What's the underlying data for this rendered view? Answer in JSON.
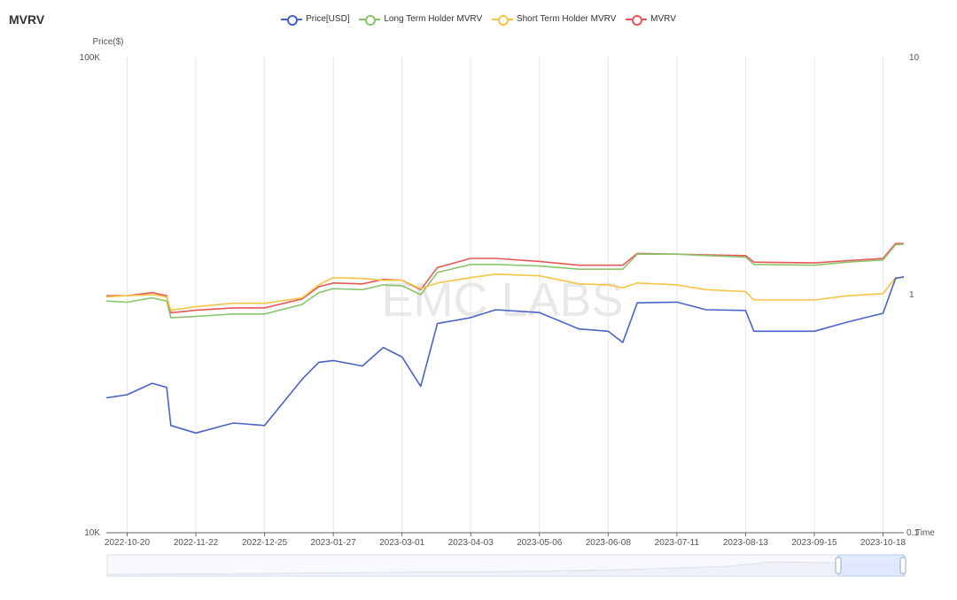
{
  "page_title": "MVRV",
  "legend": [
    {
      "label": "Price[USD]",
      "color": "#4a63c9"
    },
    {
      "label": "Long Term Holder MVRV",
      "color": "#8cc46b"
    },
    {
      "label": "Short Term Holder MVRV",
      "color": "#f5c445"
    },
    {
      "label": "MVRV",
      "color": "#e85757"
    }
  ],
  "watermark": "EMC LABS",
  "chart_data": {
    "type": "line",
    "x_label": "Time",
    "y_left_label": "Price($)",
    "y_left_scale": "log",
    "y_left_range": [
      10000,
      100000
    ],
    "y_left_ticks": [
      "10K",
      "100K"
    ],
    "y_right_scale": "log",
    "y_right_range": [
      0.1,
      10
    ],
    "y_right_ticks": [
      "0.1",
      "1",
      "10"
    ],
    "x_ticks": [
      "2022-10-20",
      "2022-11-22",
      "2022-12-25",
      "2023-01-27",
      "2023-03-01",
      "2023-04-03",
      "2023-05-06",
      "2023-06-08",
      "2023-07-11",
      "2023-08-13",
      "2023-09-15",
      "2023-10-18"
    ],
    "x": [
      "2022-10-10",
      "2022-10-20",
      "2022-11-01",
      "2022-11-08",
      "2022-11-10",
      "2022-11-22",
      "2022-12-10",
      "2022-12-25",
      "2023-01-12",
      "2023-01-20",
      "2023-01-27",
      "2023-02-10",
      "2023-02-20",
      "2023-03-01",
      "2023-03-10",
      "2023-03-18",
      "2023-04-03",
      "2023-04-15",
      "2023-05-06",
      "2023-05-25",
      "2023-06-08",
      "2023-06-15",
      "2023-06-22",
      "2023-07-11",
      "2023-07-25",
      "2023-08-13",
      "2023-08-17",
      "2023-09-15",
      "2023-10-01",
      "2023-10-18",
      "2023-10-24",
      "2023-10-28"
    ],
    "series": [
      {
        "name": "Price[USD]",
        "axis": "left",
        "values": [
          19200,
          19500,
          20600,
          20200,
          16800,
          16200,
          17000,
          16800,
          21000,
          22800,
          23000,
          22400,
          24500,
          23400,
          20300,
          27500,
          28300,
          29400,
          29000,
          26800,
          26500,
          25100,
          30400,
          30500,
          29400,
          29300,
          26500,
          26500,
          27700,
          28900,
          34200,
          34500
        ]
      },
      {
        "name": "Long Term Holder MVRV",
        "axis": "left",
        "values": [
          0.94,
          0.93,
          0.97,
          0.94,
          0.8,
          0.81,
          0.83,
          0.83,
          0.91,
          1.02,
          1.06,
          1.05,
          1.1,
          1.09,
          1.0,
          1.24,
          1.34,
          1.34,
          1.32,
          1.28,
          1.28,
          1.28,
          1.48,
          1.48,
          1.46,
          1.44,
          1.34,
          1.33,
          1.37,
          1.4,
          1.62,
          1.63
        ]
      },
      {
        "name": "Short Term Holder MVRV",
        "axis": "right",
        "values": [
          0.98,
          0.99,
          1.0,
          0.98,
          0.86,
          0.89,
          0.92,
          0.92,
          0.97,
          1.1,
          1.18,
          1.17,
          1.15,
          1.15,
          1.06,
          1.12,
          1.18,
          1.22,
          1.2,
          1.11,
          1.1,
          1.07,
          1.12,
          1.1,
          1.05,
          1.03,
          0.95,
          0.95,
          0.99,
          1.01,
          1.18,
          1.18
        ]
      },
      {
        "name": "MVRV",
        "axis": "right",
        "values": [
          0.99,
          0.99,
          1.02,
          0.99,
          0.84,
          0.86,
          0.88,
          0.88,
          0.96,
          1.08,
          1.12,
          1.11,
          1.16,
          1.15,
          1.05,
          1.3,
          1.42,
          1.42,
          1.38,
          1.33,
          1.33,
          1.33,
          1.49,
          1.48,
          1.47,
          1.46,
          1.37,
          1.36,
          1.39,
          1.42,
          1.64,
          1.64
        ]
      }
    ],
    "grid": "vertical",
    "legend_position": "top-center"
  }
}
